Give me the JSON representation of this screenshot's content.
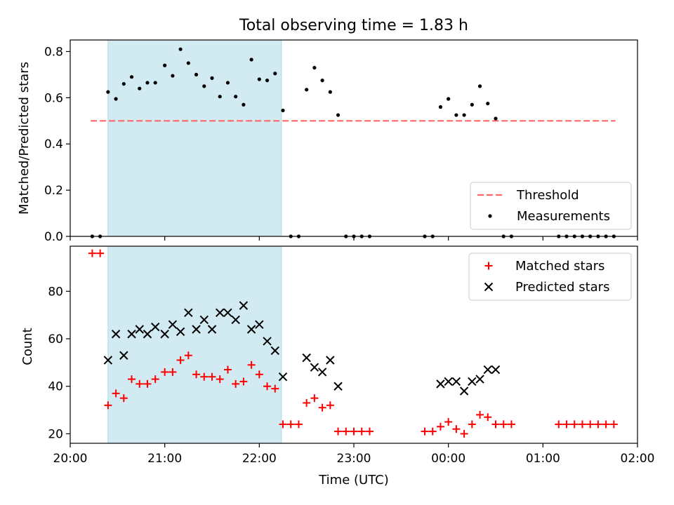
{
  "chart_data": [
    {
      "type": "scatter",
      "title": "Total observing time = 1.83 h",
      "xlabel": "",
      "ylabel": "Matched/Predicted stars",
      "xlim": [
        "20:00",
        "02:00"
      ],
      "ylim": [
        0,
        0.85
      ],
      "yticks": [
        "0.0",
        "0.2",
        "0.4",
        "0.6",
        "0.8"
      ],
      "yticks_values": [
        0,
        0.2,
        0.4,
        0.6,
        0.8
      ],
      "highlight_span": {
        "start": "20:24",
        "end": "22:14",
        "color": "#add8e6"
      },
      "threshold": {
        "label": "Threshold",
        "y": 0.5,
        "x_start": "20:13",
        "x_end": "01:46",
        "color": "#ff6666",
        "style": "dashed"
      },
      "legend": {
        "placement": "lower right",
        "entries": [
          "Threshold",
          "Measurements"
        ]
      },
      "series": [
        {
          "name": "Measurements",
          "color": "#000000",
          "marker": "dot",
          "points": [
            [
              "20:14",
              0
            ],
            [
              "20:19",
              0
            ],
            [
              "20:24",
              0.625
            ],
            [
              "20:29",
              0.595
            ],
            [
              "20:34",
              0.66
            ],
            [
              "20:39",
              0.69
            ],
            [
              "20:44",
              0.64
            ],
            [
              "20:49",
              0.665
            ],
            [
              "20:54",
              0.665
            ],
            [
              "21:00",
              0.74
            ],
            [
              "21:05",
              0.695
            ],
            [
              "21:10",
              0.81
            ],
            [
              "21:15",
              0.75
            ],
            [
              "21:20",
              0.7
            ],
            [
              "21:25",
              0.65
            ],
            [
              "21:30",
              0.685
            ],
            [
              "21:35",
              0.605
            ],
            [
              "21:40",
              0.665
            ],
            [
              "21:45",
              0.605
            ],
            [
              "21:50",
              0.57
            ],
            [
              "21:55",
              0.765
            ],
            [
              "22:00",
              0.68
            ],
            [
              "22:05",
              0.675
            ],
            [
              "22:10",
              0.705
            ],
            [
              "22:15",
              0.545
            ],
            [
              "22:20",
              0
            ],
            [
              "22:25",
              0
            ],
            [
              "22:30",
              0.635
            ],
            [
              "22:35",
              0.73
            ],
            [
              "22:40",
              0.675
            ],
            [
              "22:45",
              0.625
            ],
            [
              "22:50",
              0.525
            ],
            [
              "22:55",
              0
            ],
            [
              "23:00",
              0
            ],
            [
              "23:05",
              0
            ],
            [
              "23:10",
              0
            ],
            [
              "23:45",
              0
            ],
            [
              "23:50",
              0
            ],
            [
              "23:55",
              0.56
            ],
            [
              "00:00",
              0.595
            ],
            [
              "00:05",
              0.525
            ],
            [
              "00:10",
              0.525
            ],
            [
              "00:15",
              0.57
            ],
            [
              "00:20",
              0.65
            ],
            [
              "00:25",
              0.575
            ],
            [
              "00:30",
              0.51
            ],
            [
              "00:35",
              0
            ],
            [
              "00:40",
              0
            ],
            [
              "01:10",
              0
            ],
            [
              "01:15",
              0
            ],
            [
              "01:20",
              0
            ],
            [
              "01:25",
              0
            ],
            [
              "01:30",
              0
            ],
            [
              "01:35",
              0
            ],
            [
              "01:40",
              0
            ],
            [
              "01:45",
              0
            ]
          ]
        }
      ]
    },
    {
      "type": "scatter",
      "title": "",
      "xlabel": "Time (UTC)",
      "ylabel": "Count",
      "xlim": [
        "20:00",
        "02:00"
      ],
      "ylim": [
        16,
        99
      ],
      "xticks": [
        "20:00",
        "21:00",
        "22:00",
        "23:00",
        "00:00",
        "01:00",
        "02:00"
      ],
      "yticks": [
        "20",
        "40",
        "60",
        "80"
      ],
      "yticks_values": [
        20,
        40,
        60,
        80
      ],
      "highlight_span": {
        "start": "20:24",
        "end": "22:14",
        "color": "#add8e6"
      },
      "legend": {
        "placement": "upper right",
        "entries": [
          "Matched stars",
          "Predicted stars"
        ]
      },
      "series": [
        {
          "name": "Matched stars",
          "color": "#ff0000",
          "marker": "plus",
          "points": [
            [
              "20:14",
              96
            ],
            [
              "20:19",
              96
            ],
            [
              "20:24",
              32
            ],
            [
              "20:29",
              37
            ],
            [
              "20:34",
              35
            ],
            [
              "20:39",
              43
            ],
            [
              "20:44",
              41
            ],
            [
              "20:49",
              41
            ],
            [
              "20:54",
              43
            ],
            [
              "21:00",
              46
            ],
            [
              "21:05",
              46
            ],
            [
              "21:10",
              51
            ],
            [
              "21:15",
              53
            ],
            [
              "21:20",
              45
            ],
            [
              "21:25",
              44
            ],
            [
              "21:30",
              44
            ],
            [
              "21:35",
              43
            ],
            [
              "21:40",
              47
            ],
            [
              "21:45",
              41
            ],
            [
              "21:50",
              42
            ],
            [
              "21:55",
              49
            ],
            [
              "22:00",
              45
            ],
            [
              "22:05",
              40
            ],
            [
              "22:10",
              39
            ],
            [
              "22:15",
              24
            ],
            [
              "22:20",
              24
            ],
            [
              "22:25",
              24
            ],
            [
              "22:30",
              33
            ],
            [
              "22:35",
              35
            ],
            [
              "22:40",
              31
            ],
            [
              "22:45",
              32
            ],
            [
              "22:50",
              21
            ],
            [
              "22:55",
              21
            ],
            [
              "23:00",
              21
            ],
            [
              "23:05",
              21
            ],
            [
              "23:10",
              21
            ],
            [
              "23:45",
              21
            ],
            [
              "23:50",
              21
            ],
            [
              "23:55",
              23
            ],
            [
              "00:00",
              25
            ],
            [
              "00:05",
              22
            ],
            [
              "00:10",
              20
            ],
            [
              "00:15",
              24
            ],
            [
              "00:20",
              28
            ],
            [
              "00:25",
              27
            ],
            [
              "00:30",
              24
            ],
            [
              "00:35",
              24
            ],
            [
              "00:40",
              24
            ],
            [
              "01:10",
              24
            ],
            [
              "01:15",
              24
            ],
            [
              "01:20",
              24
            ],
            [
              "01:25",
              24
            ],
            [
              "01:30",
              24
            ],
            [
              "01:35",
              24
            ],
            [
              "01:40",
              24
            ],
            [
              "01:45",
              24
            ]
          ]
        },
        {
          "name": "Predicted stars",
          "color": "#000000",
          "marker": "x",
          "points": [
            [
              "20:24",
              51
            ],
            [
              "20:29",
              62
            ],
            [
              "20:34",
              53
            ],
            [
              "20:39",
              62
            ],
            [
              "20:44",
              64
            ],
            [
              "20:49",
              62
            ],
            [
              "20:54",
              65
            ],
            [
              "21:00",
              62
            ],
            [
              "21:05",
              66
            ],
            [
              "21:10",
              63
            ],
            [
              "21:15",
              71
            ],
            [
              "21:20",
              64
            ],
            [
              "21:25",
              68
            ],
            [
              "21:30",
              64
            ],
            [
              "21:35",
              71
            ],
            [
              "21:40",
              71
            ],
            [
              "21:45",
              68
            ],
            [
              "21:50",
              74
            ],
            [
              "21:55",
              64
            ],
            [
              "22:00",
              66
            ],
            [
              "22:05",
              59
            ],
            [
              "22:10",
              55
            ],
            [
              "22:15",
              44
            ],
            [
              "22:30",
              52
            ],
            [
              "22:35",
              48
            ],
            [
              "22:40",
              46
            ],
            [
              "22:45",
              51
            ],
            [
              "22:50",
              40
            ],
            [
              "23:55",
              41
            ],
            [
              "00:00",
              42
            ],
            [
              "00:05",
              42
            ],
            [
              "00:10",
              38
            ],
            [
              "00:15",
              42
            ],
            [
              "00:20",
              43
            ],
            [
              "00:25",
              47
            ],
            [
              "00:30",
              47
            ]
          ]
        }
      ]
    }
  ]
}
